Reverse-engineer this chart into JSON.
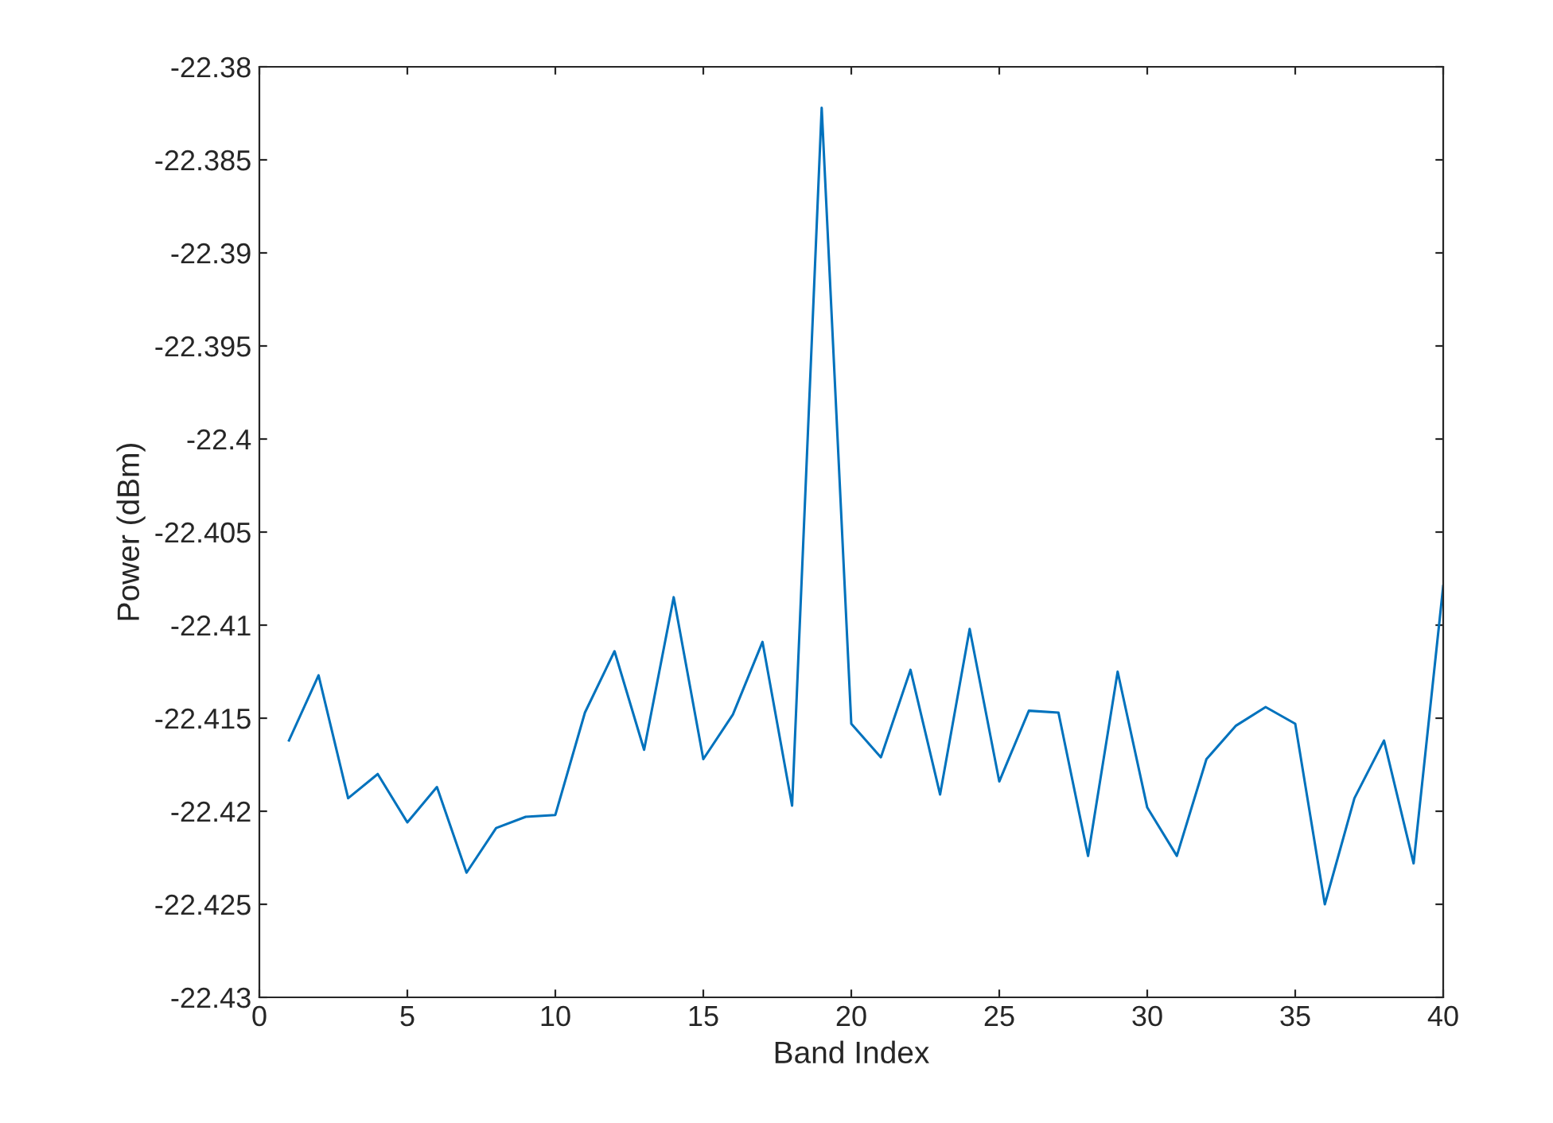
{
  "chart_data": {
    "type": "line",
    "xlabel": "Band Index",
    "ylabel": "Power (dBm)",
    "x": [
      1,
      2,
      3,
      4,
      5,
      6,
      7,
      8,
      9,
      10,
      11,
      12,
      13,
      14,
      15,
      16,
      17,
      18,
      19,
      20,
      21,
      22,
      23,
      24,
      25,
      26,
      27,
      28,
      29,
      30,
      31,
      32,
      33,
      34,
      35,
      36,
      37,
      38,
      39,
      40
    ],
    "series": [
      {
        "color": "#0072bd",
        "values": [
          -22.4162,
          -22.4127,
          -22.4193,
          -22.418,
          -22.4206,
          -22.4187,
          -22.4233,
          -22.4209,
          -22.4203,
          -22.4202,
          -22.4147,
          -22.4114,
          -22.4167,
          -22.4085,
          -22.4172,
          -22.4148,
          -22.4109,
          -22.4197,
          -22.3822,
          -22.4153,
          -22.4171,
          -22.4124,
          -22.4191,
          -22.4102,
          -22.4184,
          -22.4146,
          -22.4147,
          -22.4224,
          -22.4125,
          -22.4198,
          -22.4224,
          -22.4172,
          -22.4154,
          -22.4144,
          -22.4153,
          -22.425,
          -22.4193,
          -22.4162,
          -22.4228,
          -22.4079
        ]
      }
    ],
    "xlim": [
      0,
      40
    ],
    "xticks": [
      0,
      5,
      10,
      15,
      20,
      25,
      30,
      35,
      40
    ],
    "ylim": [
      -22.43,
      -22.38
    ],
    "yticks": [
      -22.43,
      -22.425,
      -22.42,
      -22.415,
      -22.41,
      -22.405,
      -22.4,
      -22.395,
      -22.39,
      -22.385,
      -22.38
    ],
    "marker": "none",
    "line_style": "solid"
  }
}
